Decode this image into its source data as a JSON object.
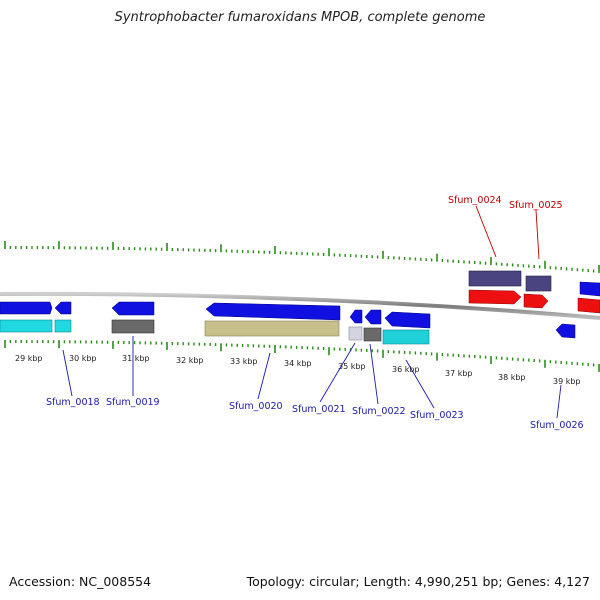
{
  "title": "Syntrophobacter fumaroxidans MPOB, complete genome",
  "footer": {
    "accession": "Accession: NC_008554",
    "summary": "Topology: circular; Length: 4,990,251 bp; Genes: 4,127"
  },
  "scale_labels": [
    "29 kbp",
    "30 kbp",
    "31 kbp",
    "32 kbp",
    "33 kbp",
    "34 kbp",
    "35 kbp",
    "36 kbp",
    "37 kbp",
    "38 kbp",
    "39 kbp"
  ],
  "gene_labels": [
    "Sfum_0018",
    "Sfum_0019",
    "Sfum_0020",
    "Sfum_0021",
    "Sfum_0022",
    "Sfum_0023",
    "Sfum_0024",
    "Sfum_0025",
    "Sfum_0026"
  ],
  "colors": {
    "blue": "#1010e0",
    "cyan": "#20c8d0",
    "khaki": "#c8c08a",
    "gray": "#6a6a6a",
    "lightgray": "#c8c8d4",
    "red": "#ee1010",
    "slate": "#4a4580",
    "tick": "#2a8a1a",
    "label_blue": "#1a1aaa",
    "label_red": "#bb0000",
    "backbone": "#999999"
  }
}
